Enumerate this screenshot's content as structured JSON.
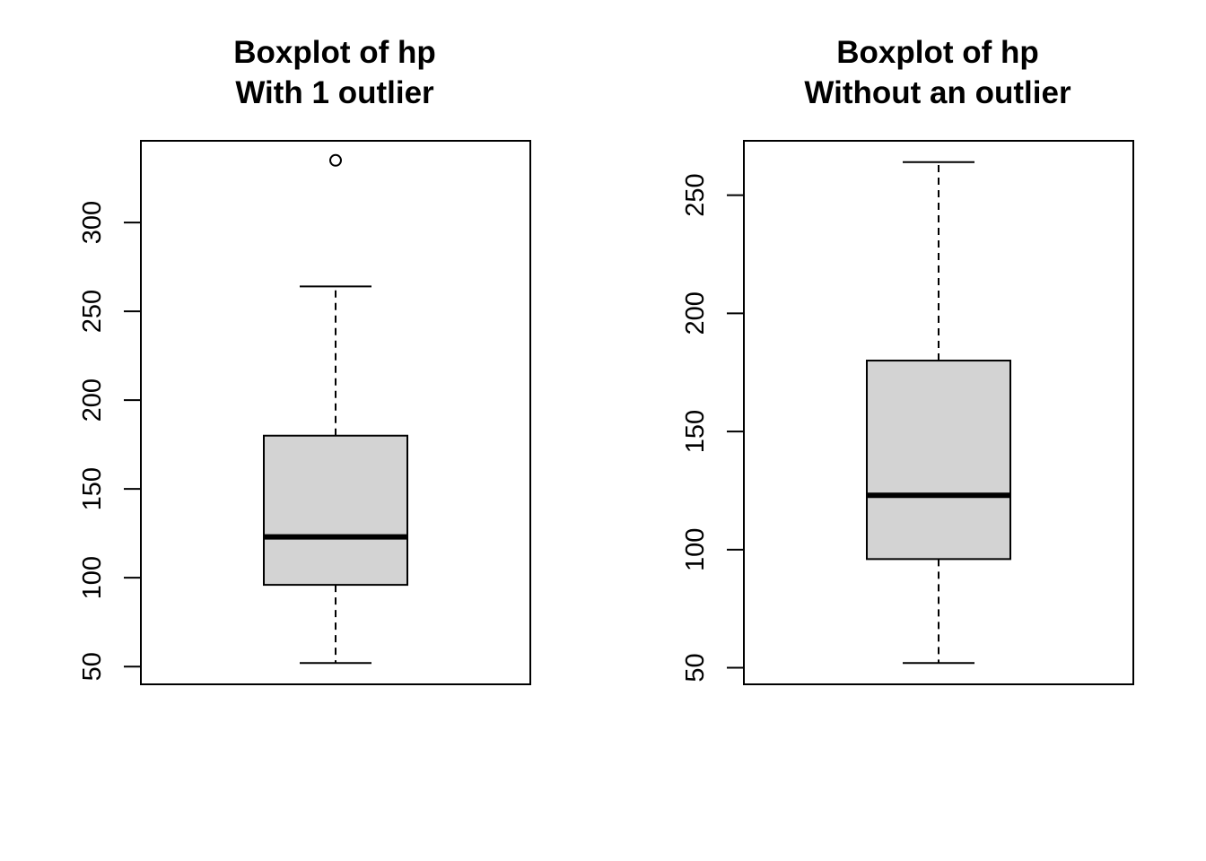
{
  "chart_data": [
    {
      "type": "boxplot",
      "title": "Boxplot of hp",
      "subtitle": "With 1 outlier",
      "ylim": [
        40,
        346
      ],
      "yticks": [
        50,
        100,
        150,
        200,
        250,
        300
      ],
      "ytick_labels": [
        "50",
        "100",
        "150",
        "200",
        "250",
        "300"
      ],
      "box": {
        "min": 52,
        "q1": 96,
        "median": 123,
        "q3": 180,
        "max": 264
      },
      "outliers": [
        335
      ],
      "fill": "#d3d3d3"
    },
    {
      "type": "boxplot",
      "title": "Boxplot of hp",
      "subtitle": "Without an outlier",
      "ylim": [
        43,
        273
      ],
      "yticks": [
        50,
        100,
        150,
        200,
        250
      ],
      "ytick_labels": [
        "50",
        "100",
        "150",
        "200",
        "250"
      ],
      "box": {
        "min": 52,
        "q1": 96,
        "median": 123,
        "q3": 180,
        "max": 264
      },
      "outliers": [],
      "fill": "#d3d3d3"
    }
  ]
}
